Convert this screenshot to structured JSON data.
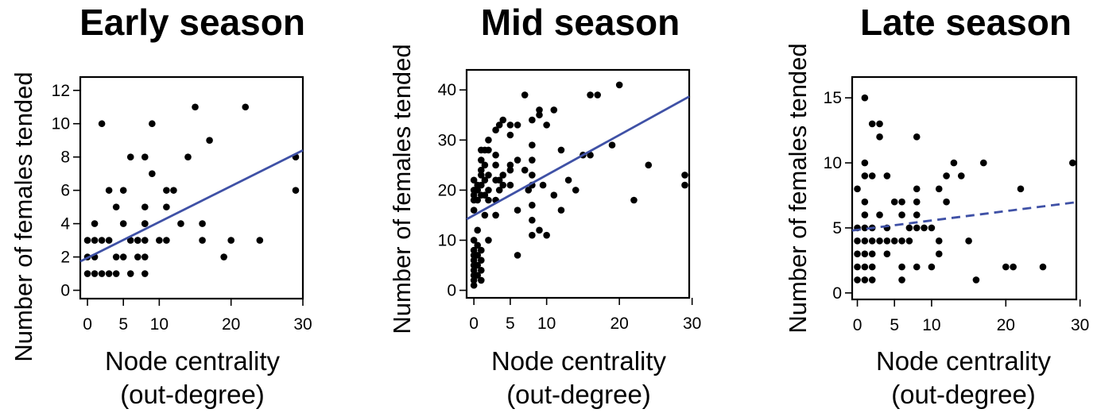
{
  "chart_data": [
    {
      "type": "scatter",
      "title": "Early season",
      "ylabel": "Number of females tended",
      "xlabel_line1": "Node centrality",
      "xlabel_line2": "(out-degree)",
      "xlim": [
        -1,
        30
      ],
      "ylim": [
        -0.5,
        12.8
      ],
      "x_ticks": [
        0,
        5,
        10,
        20,
        30
      ],
      "y_ticks": [
        0,
        2,
        4,
        6,
        8,
        10,
        12
      ],
      "fit": {
        "intercept": 1.95,
        "slope": 0.215,
        "style": "solid",
        "color": "#3f51a6"
      },
      "points": [
        [
          0,
          1
        ],
        [
          0,
          2
        ],
        [
          0,
          3
        ],
        [
          1,
          1
        ],
        [
          1,
          2
        ],
        [
          1,
          3
        ],
        [
          1,
          4
        ],
        [
          2,
          1
        ],
        [
          2,
          3
        ],
        [
          2,
          10
        ],
        [
          3,
          1
        ],
        [
          3,
          3
        ],
        [
          3,
          6
        ],
        [
          4,
          1
        ],
        [
          4,
          2
        ],
        [
          4,
          5
        ],
        [
          5,
          2
        ],
        [
          5,
          4
        ],
        [
          5,
          6
        ],
        [
          6,
          1
        ],
        [
          6,
          3
        ],
        [
          6,
          8
        ],
        [
          7,
          2
        ],
        [
          7,
          3
        ],
        [
          7,
          3
        ],
        [
          8,
          1
        ],
        [
          8,
          2
        ],
        [
          8,
          3
        ],
        [
          8,
          4
        ],
        [
          8,
          4
        ],
        [
          8,
          5
        ],
        [
          8,
          8
        ],
        [
          9,
          7
        ],
        [
          9,
          10
        ],
        [
          10,
          3
        ],
        [
          11,
          3
        ],
        [
          11,
          5
        ],
        [
          11,
          6
        ],
        [
          12,
          6
        ],
        [
          13,
          4
        ],
        [
          14,
          8
        ],
        [
          15,
          11
        ],
        [
          16,
          3
        ],
        [
          16,
          4
        ],
        [
          17,
          9
        ],
        [
          19,
          2
        ],
        [
          20,
          3
        ],
        [
          22,
          11
        ],
        [
          24,
          3
        ],
        [
          29,
          6
        ],
        [
          29,
          8
        ]
      ]
    },
    {
      "type": "scatter",
      "title": "Mid season",
      "ylabel": "Number of females tended",
      "xlabel_line1": "Node centrality",
      "xlabel_line2": "(out-degree)",
      "xlim": [
        -1,
        29.6
      ],
      "ylim": [
        -1.5,
        44
      ],
      "x_ticks": [
        0,
        5,
        10,
        20,
        30
      ],
      "y_ticks": [
        0,
        10,
        20,
        30,
        40
      ],
      "fit": {
        "intercept": 15,
        "slope": 0.8,
        "style": "solid",
        "color": "#3f51a6"
      },
      "points": [
        [
          0,
          1
        ],
        [
          0,
          2
        ],
        [
          0,
          3
        ],
        [
          0,
          4
        ],
        [
          0,
          5
        ],
        [
          0,
          6
        ],
        [
          0,
          7
        ],
        [
          0,
          8
        ],
        [
          0,
          10
        ],
        [
          0,
          16
        ],
        [
          0,
          18
        ],
        [
          0,
          19
        ],
        [
          0,
          20
        ],
        [
          0,
          22
        ],
        [
          0.5,
          3
        ],
        [
          0.5,
          5
        ],
        [
          0.5,
          7
        ],
        [
          0.5,
          9
        ],
        [
          0.5,
          12
        ],
        [
          0.5,
          18
        ],
        [
          0.5,
          20
        ],
        [
          0.5,
          21
        ],
        [
          1,
          2
        ],
        [
          1,
          4
        ],
        [
          1,
          6
        ],
        [
          1,
          8
        ],
        [
          1,
          19
        ],
        [
          1,
          21
        ],
        [
          1,
          23
        ],
        [
          1,
          24
        ],
        [
          1,
          26
        ],
        [
          1,
          28
        ],
        [
          1.5,
          15
        ],
        [
          1.5,
          19
        ],
        [
          1.5,
          22
        ],
        [
          1.5,
          25
        ],
        [
          1.5,
          28
        ],
        [
          2,
          10
        ],
        [
          2,
          18
        ],
        [
          2,
          20
        ],
        [
          2,
          23
        ],
        [
          2,
          28
        ],
        [
          2,
          30
        ],
        [
          3,
          15
        ],
        [
          3,
          18
        ],
        [
          3,
          22
        ],
        [
          3,
          25
        ],
        [
          3,
          27
        ],
        [
          3,
          32
        ],
        [
          3.5,
          20
        ],
        [
          3.5,
          22
        ],
        [
          3.5,
          33
        ],
        [
          4,
          21
        ],
        [
          4,
          23
        ],
        [
          4,
          34
        ],
        [
          5,
          21
        ],
        [
          5,
          24
        ],
        [
          5,
          25
        ],
        [
          5,
          31
        ],
        [
          5,
          33
        ],
        [
          6,
          7
        ],
        [
          6,
          16
        ],
        [
          6,
          26
        ],
        [
          6,
          33
        ],
        [
          7,
          24
        ],
        [
          7,
          39
        ],
        [
          7.5,
          20
        ],
        [
          8,
          11
        ],
        [
          8,
          14
        ],
        [
          8,
          17
        ],
        [
          8,
          21
        ],
        [
          8,
          23
        ],
        [
          8,
          26
        ],
        [
          8,
          29
        ],
        [
          8,
          34
        ],
        [
          9,
          12
        ],
        [
          9,
          35
        ],
        [
          9,
          36
        ],
        [
          9.5,
          21
        ],
        [
          10,
          11
        ],
        [
          10,
          33
        ],
        [
          11,
          19
        ],
        [
          11,
          36
        ],
        [
          12,
          16
        ],
        [
          12,
          28
        ],
        [
          13,
          22
        ],
        [
          14,
          20
        ],
        [
          15,
          27
        ],
        [
          16,
          27
        ],
        [
          16,
          39
        ],
        [
          17,
          39
        ],
        [
          19,
          29
        ],
        [
          20,
          41
        ],
        [
          22,
          18
        ],
        [
          24,
          25
        ],
        [
          29,
          21
        ],
        [
          29,
          23
        ]
      ]
    },
    {
      "type": "scatter",
      "title": "Late season",
      "ylabel": "Number of females tended",
      "xlabel_line1": "Node centrality",
      "xlabel_line2": "(out-degree)",
      "xlim": [
        -0.7,
        29.5
      ],
      "ylim": [
        -0.5,
        16.6
      ],
      "x_ticks": [
        0,
        5,
        10,
        20,
        30
      ],
      "y_ticks": [
        0,
        5,
        10,
        15
      ],
      "fit": {
        "intercept": 4.85,
        "slope": 0.072,
        "style": "dashed",
        "color": "#3f51a6"
      },
      "points": [
        [
          0,
          1
        ],
        [
          0,
          2
        ],
        [
          0,
          3
        ],
        [
          0,
          4
        ],
        [
          0,
          5
        ],
        [
          0,
          8
        ],
        [
          1,
          1
        ],
        [
          1,
          2
        ],
        [
          1,
          3
        ],
        [
          1,
          4
        ],
        [
          1,
          5
        ],
        [
          1,
          6
        ],
        [
          1,
          7
        ],
        [
          1,
          9
        ],
        [
          1,
          10
        ],
        [
          1,
          15
        ],
        [
          2,
          1
        ],
        [
          2,
          2
        ],
        [
          2,
          3
        ],
        [
          2,
          4
        ],
        [
          2,
          5
        ],
        [
          2,
          9
        ],
        [
          2,
          13
        ],
        [
          3,
          4
        ],
        [
          3,
          6
        ],
        [
          3,
          12
        ],
        [
          3,
          13
        ],
        [
          4,
          3
        ],
        [
          4,
          4
        ],
        [
          4,
          5
        ],
        [
          4,
          9
        ],
        [
          5,
          4
        ],
        [
          5,
          7
        ],
        [
          6,
          1
        ],
        [
          6,
          2
        ],
        [
          6,
          4
        ],
        [
          6,
          6
        ],
        [
          6,
          7
        ],
        [
          7,
          4
        ],
        [
          7,
          5
        ],
        [
          8,
          2
        ],
        [
          8,
          5
        ],
        [
          8,
          6
        ],
        [
          8,
          7
        ],
        [
          8,
          8
        ],
        [
          8,
          12
        ],
        [
          9,
          5
        ],
        [
          10,
          2
        ],
        [
          10,
          5
        ],
        [
          11,
          3
        ],
        [
          11,
          4
        ],
        [
          11,
          8
        ],
        [
          12,
          7
        ],
        [
          12,
          9
        ],
        [
          13,
          10
        ],
        [
          14,
          9
        ],
        [
          15,
          4
        ],
        [
          16,
          1
        ],
        [
          17,
          10
        ],
        [
          20,
          2
        ],
        [
          21,
          2
        ],
        [
          22,
          8
        ],
        [
          25,
          2
        ],
        [
          29,
          10
        ]
      ]
    }
  ]
}
